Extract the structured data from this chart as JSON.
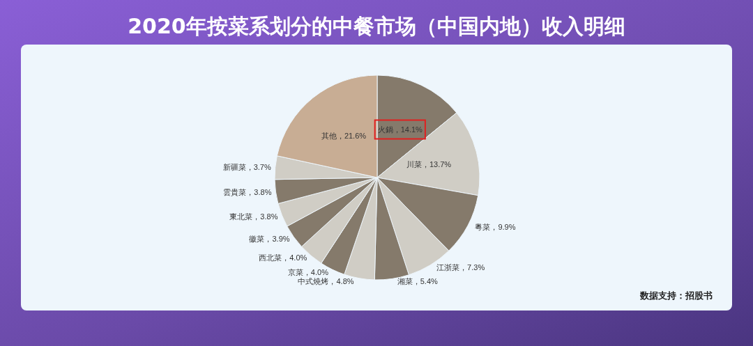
{
  "chart_data": {
    "type": "pie",
    "title": "2020年按菜系划分的中餐市场（中国内地）收入明细",
    "categories": [
      "火鍋",
      "川菜",
      "粵菜",
      "江浙菜",
      "湘菜",
      "中式燒烤",
      "京菜",
      "西北菜",
      "徽菜",
      "東北菜",
      "雲貴菜",
      "新疆菜",
      "其他"
    ],
    "values": [
      14.1,
      13.7,
      9.9,
      7.3,
      5.4,
      4.8,
      4.0,
      4.0,
      3.9,
      3.8,
      3.8,
      3.7,
      21.6
    ],
    "value_labels": [
      "14.1%",
      "13.7%",
      "9.9%",
      "7.3%",
      "5.4%",
      "4.8%",
      "4.0%",
      "4.0%",
      "3.9%",
      "3.8%",
      "3.8%",
      "3.7%",
      "21.6%"
    ],
    "colors": [
      "#857a6b",
      "#d0cdc5",
      "#857a6b",
      "#d0cdc5",
      "#857a6b",
      "#d0cdc5",
      "#857a6b",
      "#d0cdc5",
      "#857a6b",
      "#d0cdc5",
      "#857a6b",
      "#d0cdc5",
      "#c8ad94"
    ],
    "annotations": [
      "数据支持：招股书"
    ],
    "legend": false
  }
}
